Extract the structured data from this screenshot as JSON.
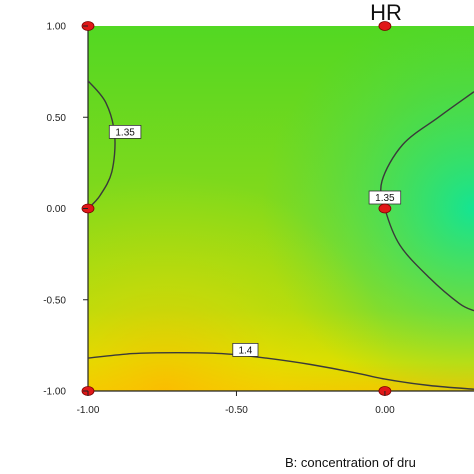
{
  "chart_data": {
    "type": "heatmap",
    "subtype": "contour",
    "title": "HR",
    "xlabel": "B: concentration of dru",
    "ylabel": "",
    "xlim": [
      -1.0,
      0.3
    ],
    "ylim": [
      -1.0,
      1.0
    ],
    "x_ticks": [
      "-1.00",
      "-0.50",
      "0.00"
    ],
    "y_ticks": [
      "1.00",
      "0.50",
      "0.00",
      "-0.50",
      "-1.00"
    ],
    "x_tick_values": [
      -1.0,
      -0.5,
      0.0
    ],
    "y_tick_values": [
      1.0,
      0.5,
      0.0,
      -0.5,
      -1.0
    ],
    "colors": {
      "high": "#f0d400",
      "mid": "#7fdc1e",
      "low": "#00e6a0",
      "contour": "#3a3a3a",
      "design_point": "#e01818"
    },
    "contours": [
      {
        "label": "1.35",
        "points": [
          [
            -1.0,
            0.7
          ],
          [
            -0.94,
            0.58
          ],
          [
            -0.91,
            0.4
          ],
          [
            -0.92,
            0.2
          ],
          [
            -0.96,
            0.07
          ],
          [
            -1.0,
            0.0
          ]
        ],
        "label_at": [
          -0.875,
          0.42
        ]
      },
      {
        "label": "1.35",
        "points": [
          [
            0.3,
            0.64
          ],
          [
            0.18,
            0.5
          ],
          [
            0.06,
            0.35
          ],
          [
            -0.01,
            0.15
          ],
          [
            0.0,
            0.0
          ],
          [
            0.05,
            -0.2
          ],
          [
            0.15,
            -0.38
          ],
          [
            0.25,
            -0.52
          ],
          [
            0.3,
            -0.56
          ]
        ],
        "label_at": [
          0.0,
          0.06
        ]
      },
      {
        "label": "1.4",
        "points": [
          [
            -1.0,
            -0.82
          ],
          [
            -0.85,
            -0.795
          ],
          [
            -0.7,
            -0.79
          ],
          [
            -0.55,
            -0.795
          ],
          [
            -0.4,
            -0.82
          ],
          [
            -0.25,
            -0.855
          ],
          [
            -0.1,
            -0.9
          ],
          [
            0.0,
            -0.935
          ],
          [
            0.15,
            -0.97
          ],
          [
            0.3,
            -0.99
          ]
        ],
        "label_at": [
          -0.47,
          -0.775
        ]
      }
    ],
    "design_points": [
      [
        -1.0,
        1.0
      ],
      [
        0.0,
        1.0
      ],
      [
        -1.0,
        0.0
      ],
      [
        0.0,
        0.0
      ],
      [
        -1.0,
        -1.0
      ],
      [
        0.0,
        -1.0
      ]
    ]
  }
}
